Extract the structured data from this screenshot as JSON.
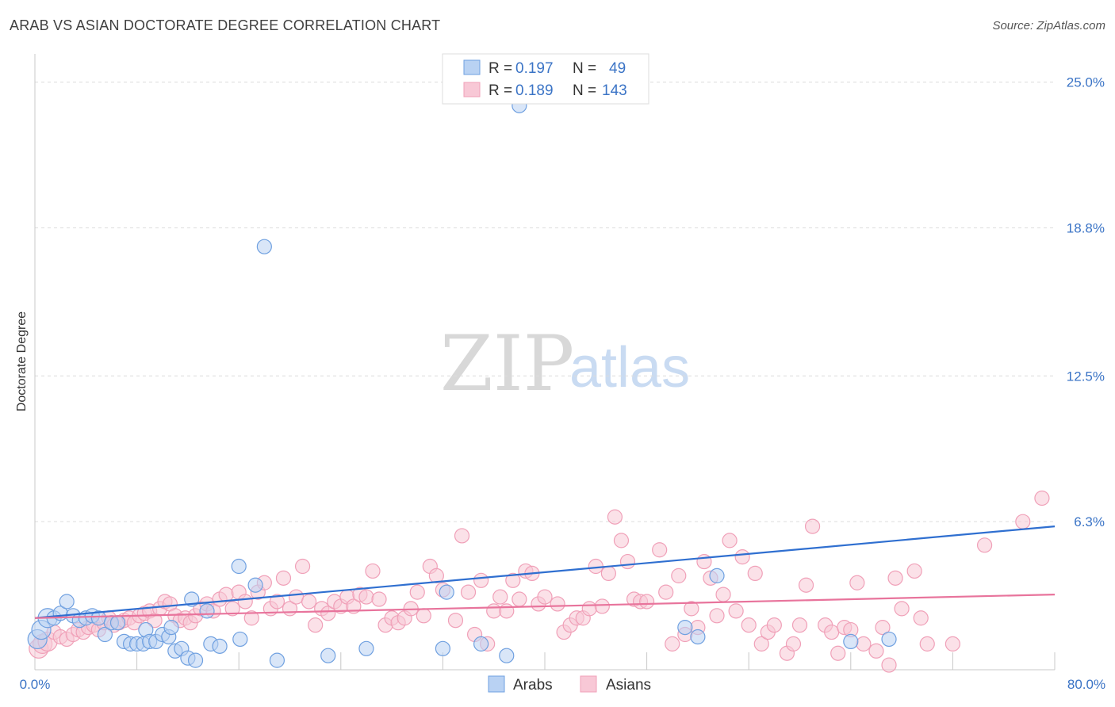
{
  "title": "ARAB VS ASIAN DOCTORATE DEGREE CORRELATION CHART",
  "source": "Source: ZipAtlas.com",
  "watermark": {
    "zip": "ZIP",
    "atlas": "atlas"
  },
  "chart_data": {
    "type": "scatter",
    "ylabel": "Doctorate Degree",
    "xlim": [
      0,
      80
    ],
    "ylim": [
      0,
      26.2
    ],
    "x_tick_labels": [
      "0.0%",
      "80.0%"
    ],
    "y_ticks": [
      {
        "value": 6.3,
        "label": "6.3%"
      },
      {
        "value": 12.5,
        "label": "12.5%"
      },
      {
        "value": 18.8,
        "label": "18.8%"
      },
      {
        "value": 25.0,
        "label": "25.0%"
      }
    ],
    "grid": "dashed horizontal",
    "legend": {
      "placement": "top-center",
      "rows": [
        {
          "r_label": "R =",
          "r_value": "0.197",
          "n_label": "N =",
          "n_value": "49"
        },
        {
          "r_label": "R =",
          "r_value": "0.189",
          "n_label": "N =",
          "n_value": "143"
        }
      ]
    },
    "series": [
      {
        "name": "Arabs",
        "color": "#6fa0e0",
        "fill": "#b9d2f3",
        "trend_color": "#2f6fd0",
        "trend": [
          [
            0,
            2.2
          ],
          [
            80,
            6.1
          ]
        ],
        "points": [
          [
            0.2,
            1.3
          ],
          [
            0.5,
            1.7
          ],
          [
            1.0,
            2.2
          ],
          [
            1.5,
            2.2
          ],
          [
            2.0,
            2.4
          ],
          [
            2.5,
            2.9
          ],
          [
            3.0,
            2.3
          ],
          [
            3.5,
            2.1
          ],
          [
            4.0,
            2.2
          ],
          [
            4.5,
            2.3
          ],
          [
            5.0,
            2.2
          ],
          [
            5.5,
            1.5
          ],
          [
            6.0,
            2.0
          ],
          [
            6.5,
            2.0
          ],
          [
            7.0,
            1.2
          ],
          [
            7.5,
            1.1
          ],
          [
            8.0,
            1.1
          ],
          [
            8.5,
            1.1
          ],
          [
            8.7,
            1.7
          ],
          [
            9.0,
            1.2
          ],
          [
            9.5,
            1.2
          ],
          [
            10.0,
            1.5
          ],
          [
            10.5,
            1.4
          ],
          [
            10.7,
            1.8
          ],
          [
            11.0,
            0.8
          ],
          [
            11.5,
            0.9
          ],
          [
            12.0,
            0.5
          ],
          [
            12.3,
            3.0
          ],
          [
            12.6,
            0.4
          ],
          [
            13.5,
            2.5
          ],
          [
            13.8,
            1.1
          ],
          [
            14.5,
            1.0
          ],
          [
            16.0,
            4.4
          ],
          [
            16.1,
            1.3
          ],
          [
            17.3,
            3.6
          ],
          [
            18.0,
            18.0
          ],
          [
            19.0,
            0.4
          ],
          [
            23.0,
            0.6
          ],
          [
            26.0,
            0.9
          ],
          [
            32.0,
            0.9
          ],
          [
            32.3,
            3.3
          ],
          [
            35.0,
            1.1
          ],
          [
            37.0,
            0.6
          ],
          [
            51.0,
            1.8
          ],
          [
            52.0,
            1.4
          ],
          [
            53.5,
            4.0
          ],
          [
            64.0,
            1.2
          ],
          [
            38.0,
            24.0
          ],
          [
            67.0,
            1.3
          ]
        ]
      },
      {
        "name": "Asians",
        "color": "#f0a0b8",
        "fill": "#f8c8d6",
        "trend_color": "#e8749c",
        "trend": [
          [
            0,
            2.2
          ],
          [
            80,
            3.2
          ]
        ],
        "points": [
          [
            0.3,
            0.9
          ],
          [
            0.6,
            1.1
          ],
          [
            1.0,
            1.2
          ],
          [
            1.5,
            1.6
          ],
          [
            2.0,
            1.4
          ],
          [
            2.5,
            1.3
          ],
          [
            3.0,
            1.5
          ],
          [
            3.4,
            1.7
          ],
          [
            3.8,
            1.6
          ],
          [
            4.2,
            1.8
          ],
          [
            4.6,
            1.9
          ],
          [
            5.0,
            1.7
          ],
          [
            5.4,
            2.0
          ],
          [
            5.8,
            2.2
          ],
          [
            6.2,
            1.9
          ],
          [
            6.6,
            2.0
          ],
          [
            7.0,
            2.1
          ],
          [
            7.4,
            2.2
          ],
          [
            7.8,
            2.0
          ],
          [
            8.2,
            2.3
          ],
          [
            8.6,
            2.4
          ],
          [
            9.0,
            2.5
          ],
          [
            9.4,
            2.1
          ],
          [
            9.8,
            2.6
          ],
          [
            10.2,
            2.9
          ],
          [
            10.6,
            2.8
          ],
          [
            11.0,
            2.3
          ],
          [
            11.4,
            2.1
          ],
          [
            11.8,
            2.2
          ],
          [
            12.2,
            2.0
          ],
          [
            12.6,
            2.3
          ],
          [
            13.0,
            2.6
          ],
          [
            13.5,
            2.8
          ],
          [
            14.0,
            2.5
          ],
          [
            14.5,
            3.0
          ],
          [
            15.0,
            3.2
          ],
          [
            15.5,
            2.6
          ],
          [
            16.0,
            3.3
          ],
          [
            16.5,
            2.9
          ],
          [
            17.0,
            2.2
          ],
          [
            17.5,
            3.3
          ],
          [
            18.0,
            3.7
          ],
          [
            18.5,
            2.6
          ],
          [
            19.0,
            2.9
          ],
          [
            19.5,
            3.9
          ],
          [
            20.0,
            2.6
          ],
          [
            20.5,
            3.1
          ],
          [
            21.0,
            4.4
          ],
          [
            21.5,
            2.9
          ],
          [
            22.0,
            1.9
          ],
          [
            22.5,
            2.6
          ],
          [
            23.0,
            2.4
          ],
          [
            23.5,
            2.9
          ],
          [
            24.0,
            2.7
          ],
          [
            24.5,
            3.1
          ],
          [
            25.0,
            2.7
          ],
          [
            25.5,
            3.2
          ],
          [
            26.0,
            3.1
          ],
          [
            26.5,
            4.2
          ],
          [
            27.0,
            3.0
          ],
          [
            27.5,
            1.9
          ],
          [
            28.0,
            2.2
          ],
          [
            28.5,
            2.0
          ],
          [
            29.0,
            2.2
          ],
          [
            29.5,
            2.6
          ],
          [
            30.0,
            3.3
          ],
          [
            30.5,
            2.3
          ],
          [
            31.0,
            4.4
          ],
          [
            31.5,
            4.0
          ],
          [
            32.0,
            3.4
          ],
          [
            33.0,
            2.1
          ],
          [
            33.5,
            5.7
          ],
          [
            34.0,
            3.3
          ],
          [
            34.5,
            1.5
          ],
          [
            35.0,
            3.8
          ],
          [
            35.5,
            1.1
          ],
          [
            36.0,
            2.5
          ],
          [
            36.5,
            3.1
          ],
          [
            37.0,
            2.5
          ],
          [
            37.5,
            3.8
          ],
          [
            38.0,
            3.0
          ],
          [
            38.5,
            4.2
          ],
          [
            39.0,
            4.1
          ],
          [
            39.5,
            2.8
          ],
          [
            40.0,
            3.1
          ],
          [
            41.0,
            2.8
          ],
          [
            41.5,
            1.6
          ],
          [
            42.0,
            1.9
          ],
          [
            42.5,
            2.2
          ],
          [
            43.0,
            2.2
          ],
          [
            43.5,
            2.6
          ],
          [
            44.0,
            4.4
          ],
          [
            44.5,
            2.7
          ],
          [
            45.0,
            4.1
          ],
          [
            45.5,
            6.5
          ],
          [
            46.0,
            5.5
          ],
          [
            46.5,
            4.6
          ],
          [
            47.0,
            3.0
          ],
          [
            47.5,
            2.9
          ],
          [
            48.0,
            2.9
          ],
          [
            49.0,
            5.1
          ],
          [
            49.5,
            3.3
          ],
          [
            50.0,
            1.1
          ],
          [
            50.5,
            4.0
          ],
          [
            51.0,
            1.5
          ],
          [
            51.5,
            2.6
          ],
          [
            52.0,
            1.8
          ],
          [
            52.5,
            4.6
          ],
          [
            53.0,
            3.9
          ],
          [
            53.5,
            2.3
          ],
          [
            54.0,
            3.2
          ],
          [
            54.5,
            5.5
          ],
          [
            55.0,
            2.5
          ],
          [
            55.5,
            4.8
          ],
          [
            56.0,
            1.9
          ],
          [
            56.5,
            4.1
          ],
          [
            57.0,
            1.1
          ],
          [
            57.5,
            1.6
          ],
          [
            58.0,
            1.9
          ],
          [
            59.0,
            0.7
          ],
          [
            59.5,
            1.1
          ],
          [
            60.0,
            1.9
          ],
          [
            60.5,
            3.6
          ],
          [
            61.0,
            6.1
          ],
          [
            62.0,
            1.9
          ],
          [
            62.5,
            1.6
          ],
          [
            63.0,
            0.7
          ],
          [
            63.5,
            1.8
          ],
          [
            64.0,
            1.7
          ],
          [
            64.5,
            3.7
          ],
          [
            65.0,
            1.1
          ],
          [
            66.0,
            0.8
          ],
          [
            66.5,
            1.8
          ],
          [
            67.0,
            0.2
          ],
          [
            67.5,
            3.9
          ],
          [
            68.0,
            2.6
          ],
          [
            69.0,
            4.2
          ],
          [
            69.5,
            2.2
          ],
          [
            70.0,
            1.1
          ],
          [
            72.0,
            1.1
          ],
          [
            74.5,
            5.3
          ],
          [
            77.5,
            6.3
          ],
          [
            79.0,
            7.3
          ]
        ]
      }
    ]
  }
}
